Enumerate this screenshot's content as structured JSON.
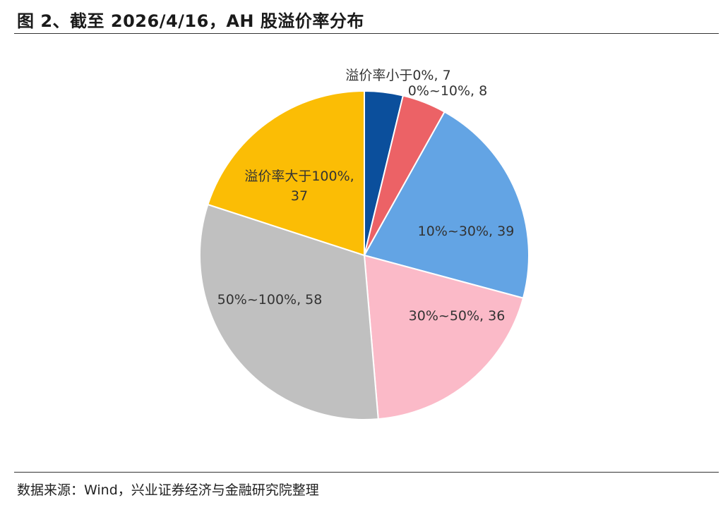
{
  "figure": {
    "title": "图 2、截至 2026/4/16，AH 股溢价率分布",
    "source": "数据来源：Wind，兴业证券经济与金融研究院整理"
  },
  "chart_data": {
    "type": "pie",
    "title": "",
    "start_angle_deg": 0,
    "direction": "clockwise",
    "slices": [
      {
        "category": "溢价率小于0%",
        "value": 7,
        "label": "溢价率小于0%, 7",
        "color": "#0b4f9c"
      },
      {
        "category": "0%~10%",
        "value": 8,
        "label": "0%~10%, 8",
        "color": "#ec6266"
      },
      {
        "category": "10%~30%",
        "value": 39,
        "label": "10%~30%, 39",
        "color": "#63a4e4"
      },
      {
        "category": "30%~50%",
        "value": 36,
        "label": "30%~50%, 36",
        "color": "#fbbac8"
      },
      {
        "category": "50%~100%",
        "value": 58,
        "label": "50%~100%, 58",
        "color": "#c0c0c0"
      },
      {
        "category": "溢价率大于100%",
        "value": 37,
        "label": "溢价率大于100%, 37",
        "label_lines": [
          "溢价率大于100%,",
          "37"
        ],
        "color": "#fbbd05"
      }
    ],
    "legend": "none"
  }
}
